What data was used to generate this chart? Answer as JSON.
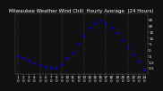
{
  "title": "Milwaukee Weather Wind Chill  Hourly Average  (24 Hours)",
  "title_fontsize": 4.0,
  "background_color": "#111111",
  "plot_bg": "#111111",
  "line_color": "#0000ee",
  "marker": ".",
  "markersize": 1.8,
  "x_values": [
    1,
    2,
    3,
    4,
    5,
    6,
    7,
    8,
    9,
    10,
    11,
    12,
    13,
    14,
    15,
    16,
    17,
    18,
    19,
    20,
    21,
    22,
    23,
    24
  ],
  "y_values": [
    -5,
    -7,
    -9,
    -11,
    -13,
    -14,
    -15,
    -15,
    -12,
    -7,
    -2,
    5,
    12,
    18,
    22,
    24,
    22,
    18,
    14,
    8,
    2,
    -4,
    -10,
    -16
  ],
  "ylim": [
    -20,
    30
  ],
  "xlim": [
    0.5,
    24.5
  ],
  "grid_x_positions": [
    1,
    5,
    9,
    13,
    17,
    21
  ],
  "tick_label_fontsize": 3.0,
  "y_tick_values": [
    -15,
    -10,
    -5,
    0,
    5,
    10,
    15,
    20,
    25
  ],
  "x_tick_labels": [
    "1\n0",
    "2\n0",
    "3\n0",
    "4\n0",
    "5\n0",
    "6\n0",
    "7\n0",
    "8\n0",
    "9\n0",
    "10\n0",
    "11\n0",
    "12\n0",
    "13\n0",
    "14\n0",
    "15\n0",
    "16\n0",
    "17\n0",
    "18\n0",
    "19\n0",
    "20\n0",
    "21\n0",
    "22\n0",
    "23\n0",
    "24\n0"
  ],
  "title_text_color": "#ffffff",
  "spine_color": "#555555",
  "grid_color": "#555555",
  "tick_color": "#ffffff",
  "label_color": "#ffffff"
}
